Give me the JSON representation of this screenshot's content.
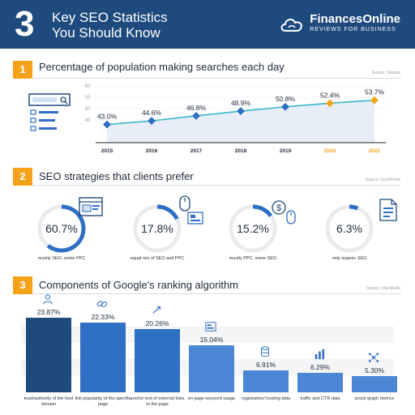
{
  "header": {
    "number": "3",
    "title_line1": "Key SEO Statistics",
    "title_line2": "You Should Know",
    "brand_name": "FinancesOnline",
    "brand_sub": "REVIEWS FOR BUSINESS"
  },
  "colors": {
    "navy": "#1e4a7d",
    "orange": "#f5a21b",
    "bar_blue": "#2f6fc4",
    "teal": "#34b7c9"
  },
  "sections": [
    {
      "number": "1",
      "title": "Percentage of population making searches each day",
      "source": "Source: Statista"
    },
    {
      "number": "2",
      "title": "SEO strategies that clients prefer",
      "source": "Source: GoodFirms"
    },
    {
      "number": "3",
      "title": "Components of Google's ranking algorithm",
      "source": "Source: Vial Media"
    }
  ],
  "chart_data": [
    {
      "type": "line",
      "title": "Percentage of population making searches each day",
      "x": [
        "2015",
        "2016",
        "2017",
        "2018",
        "2019",
        "2020",
        "2021"
      ],
      "values": [
        43.0,
        44.6,
        46.8,
        48.9,
        50.8,
        52.4,
        53.7
      ],
      "value_labels": [
        "43.0%",
        "44.6%",
        "46.8%",
        "48.9%",
        "50.8%",
        "52.4%",
        "53.7%"
      ],
      "ylim": [
        35,
        60
      ],
      "yticks": [
        "60",
        "55",
        "50",
        "45"
      ],
      "projected_years": [
        "2020",
        "2021"
      ]
    },
    {
      "type": "pie",
      "title": "SEO strategies that clients prefer",
      "slices": [
        {
          "label": "mostly SEO, some PPC",
          "value": 60.7,
          "value_label": "60.7%"
        },
        {
          "label": "equal mix of SEO and PPC",
          "value": 17.8,
          "value_label": "17.8%"
        },
        {
          "label": "mostly PPC, some SEO",
          "value": 15.2,
          "value_label": "15.2%"
        },
        {
          "label": "only organic SEO",
          "value": 6.3,
          "value_label": "6.3%"
        }
      ]
    },
    {
      "type": "bar",
      "title": "Components of Google's ranking algorithm",
      "categories": [
        "trust/authority of the host domain",
        "link popularity of the specific page",
        "anchor text of external links to the page",
        "on-page keyword usage",
        "registration/ hosting data",
        "traffic and CTR data",
        "social graph metrics"
      ],
      "values": [
        23.87,
        22.33,
        20.26,
        15.04,
        6.91,
        6.29,
        5.3
      ],
      "value_labels": [
        "23.87%",
        "22.33%",
        "20.26%",
        "15.04%",
        "6.91%",
        "6.29%",
        "5.30%"
      ],
      "ylim": [
        0,
        25
      ]
    }
  ]
}
